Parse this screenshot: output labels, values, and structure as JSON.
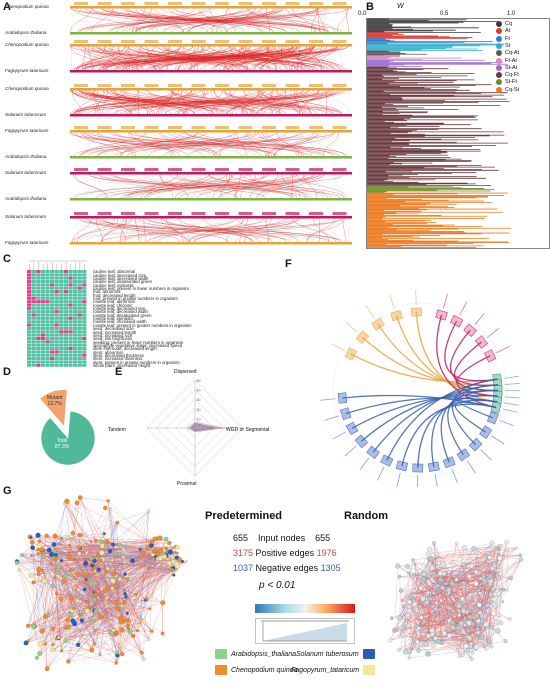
{
  "panels": {
    "a": "A",
    "b": "B",
    "c": "C",
    "d": "D",
    "e": "E",
    "f": "F",
    "g": "G"
  },
  "panel_a": {
    "species_labels": [
      "Chenopodium quinoa",
      "Arabidopsis thaliana",
      "Chenopodium quinoa",
      "Fagopyrum tataricum",
      "Chenopodium quinoa",
      "Solanum tuberosum",
      "Fagopyrum tataricum",
      "Arabidopsis thaliana",
      "Solanum tuberosum",
      "Arabidopsis thaliana",
      "Solanum tuberosum",
      "Fagopyrum tataricum"
    ]
  },
  "panel_b": {
    "axis_title": "W",
    "ticks": [
      "0.0",
      "0.5",
      "1.0"
    ],
    "legend": [
      {
        "label": "Cq",
        "color": "#3b3b3b"
      },
      {
        "label": "At",
        "color": "#e8342b"
      },
      {
        "label": "Ft",
        "color": "#2c7bd6"
      },
      {
        "label": "St",
        "color": "#33b0c9"
      },
      {
        "label": "Cq-At",
        "color": "#5a5a5a"
      },
      {
        "label": "Ft-At",
        "color": "#d98ac0"
      },
      {
        "label": "St-At",
        "color": "#9b6ad0"
      },
      {
        "label": "Cq-Ft",
        "color": "#6b3a3f"
      },
      {
        "label": "St-Ft",
        "color": "#6f8b2a"
      },
      {
        "label": "Cq-St",
        "color": "#f07a1e"
      }
    ]
  },
  "panel_c": {
    "traits": [
      "cauline leaf: abnormal",
      "cauline leaf: decreased size",
      "cauline leaf: decreased width",
      "cauline leaf: desaturated green",
      "cauline leaf: epinastic",
      "cauline leaf: present in fewer numbers in organism",
      "fruit: abnormal",
      "fruit: decreased length",
      "root: present in greater numbers in organism",
      "rosette leaf: abnormal",
      "rosette leaf: chlorotic",
      "rosette leaf: decreased size",
      "rosette leaf: decreased width",
      "rosette leaf: desaturated green",
      "rosette leaf: epinastic",
      "rosette leaf: increased width",
      "rosette leaf: present in greater numbers in organism",
      "seed: decreased size",
      "seed: increased length",
      "seed: increased size",
      "seed: low brightness",
      "seedling: present in fewer numbers in organism",
      "sporophyte vegetative stage: decreased speed",
      "stem internode: decreased length",
      "stem: abnormal",
      "stem: decreased thickness",
      "stem: increased thickness",
      "stem: present in greater numbers in organism",
      "whole plant: decreased height"
    ]
  },
  "panel_d": {
    "chart_data": {
      "type": "pie",
      "categories": [
        "Mutant",
        "Total"
      ],
      "values": [
        12.7,
        87.3
      ],
      "labels": [
        "Mutant\n12.7%",
        "Total\n87.3%"
      ],
      "colors": [
        "#f0a36c",
        "#4fb99a"
      ]
    },
    "mutant_label": "Mutant",
    "mutant_pct": "12.7%",
    "total_label": "Total",
    "total_pct": "87.3%"
  },
  "panel_e": {
    "chart_data": {
      "type": "radar",
      "axes": [
        "Dispersed",
        "WGD or Segmental",
        "Proximal",
        "Tandem"
      ],
      "ticks": [
        "10",
        "20",
        "30",
        "40",
        "50"
      ],
      "rmax": 50
    },
    "labels": {
      "top": "Dispersed",
      "right": "WGD or Segmental",
      "bottom": "Proximal",
      "left": "Tandem"
    }
  },
  "panel_g": {
    "left_title": "Predetermined",
    "right_title": "Random",
    "input_nodes": {
      "left": "655",
      "label": "Input nodes",
      "right": "655"
    },
    "positive_edges": {
      "left": "3175",
      "label": "Positive edges",
      "right": "1976"
    },
    "negative_edges": {
      "left": "1037",
      "label": "Negative edges",
      "right": "1305"
    },
    "pvalue": "p < 0.01",
    "species": [
      {
        "label": "Arabidopsis_thaliana",
        "color": "#8fd18a"
      },
      {
        "label": "Solanum tuberosum",
        "color": "#2b5cb8"
      },
      {
        "label": "Chenopodium quinoa",
        "color": "#f08a2a"
      },
      {
        "label": "Fagopyrum_tataricum",
        "color": "#f5e79a"
      }
    ],
    "colors": {
      "positive": "#d24a3f",
      "negative": "#3a5fb0",
      "gradient_low": "#2c7bb6",
      "gradient_mid": "#f2f2f2",
      "gradient_high": "#d7191c"
    }
  }
}
